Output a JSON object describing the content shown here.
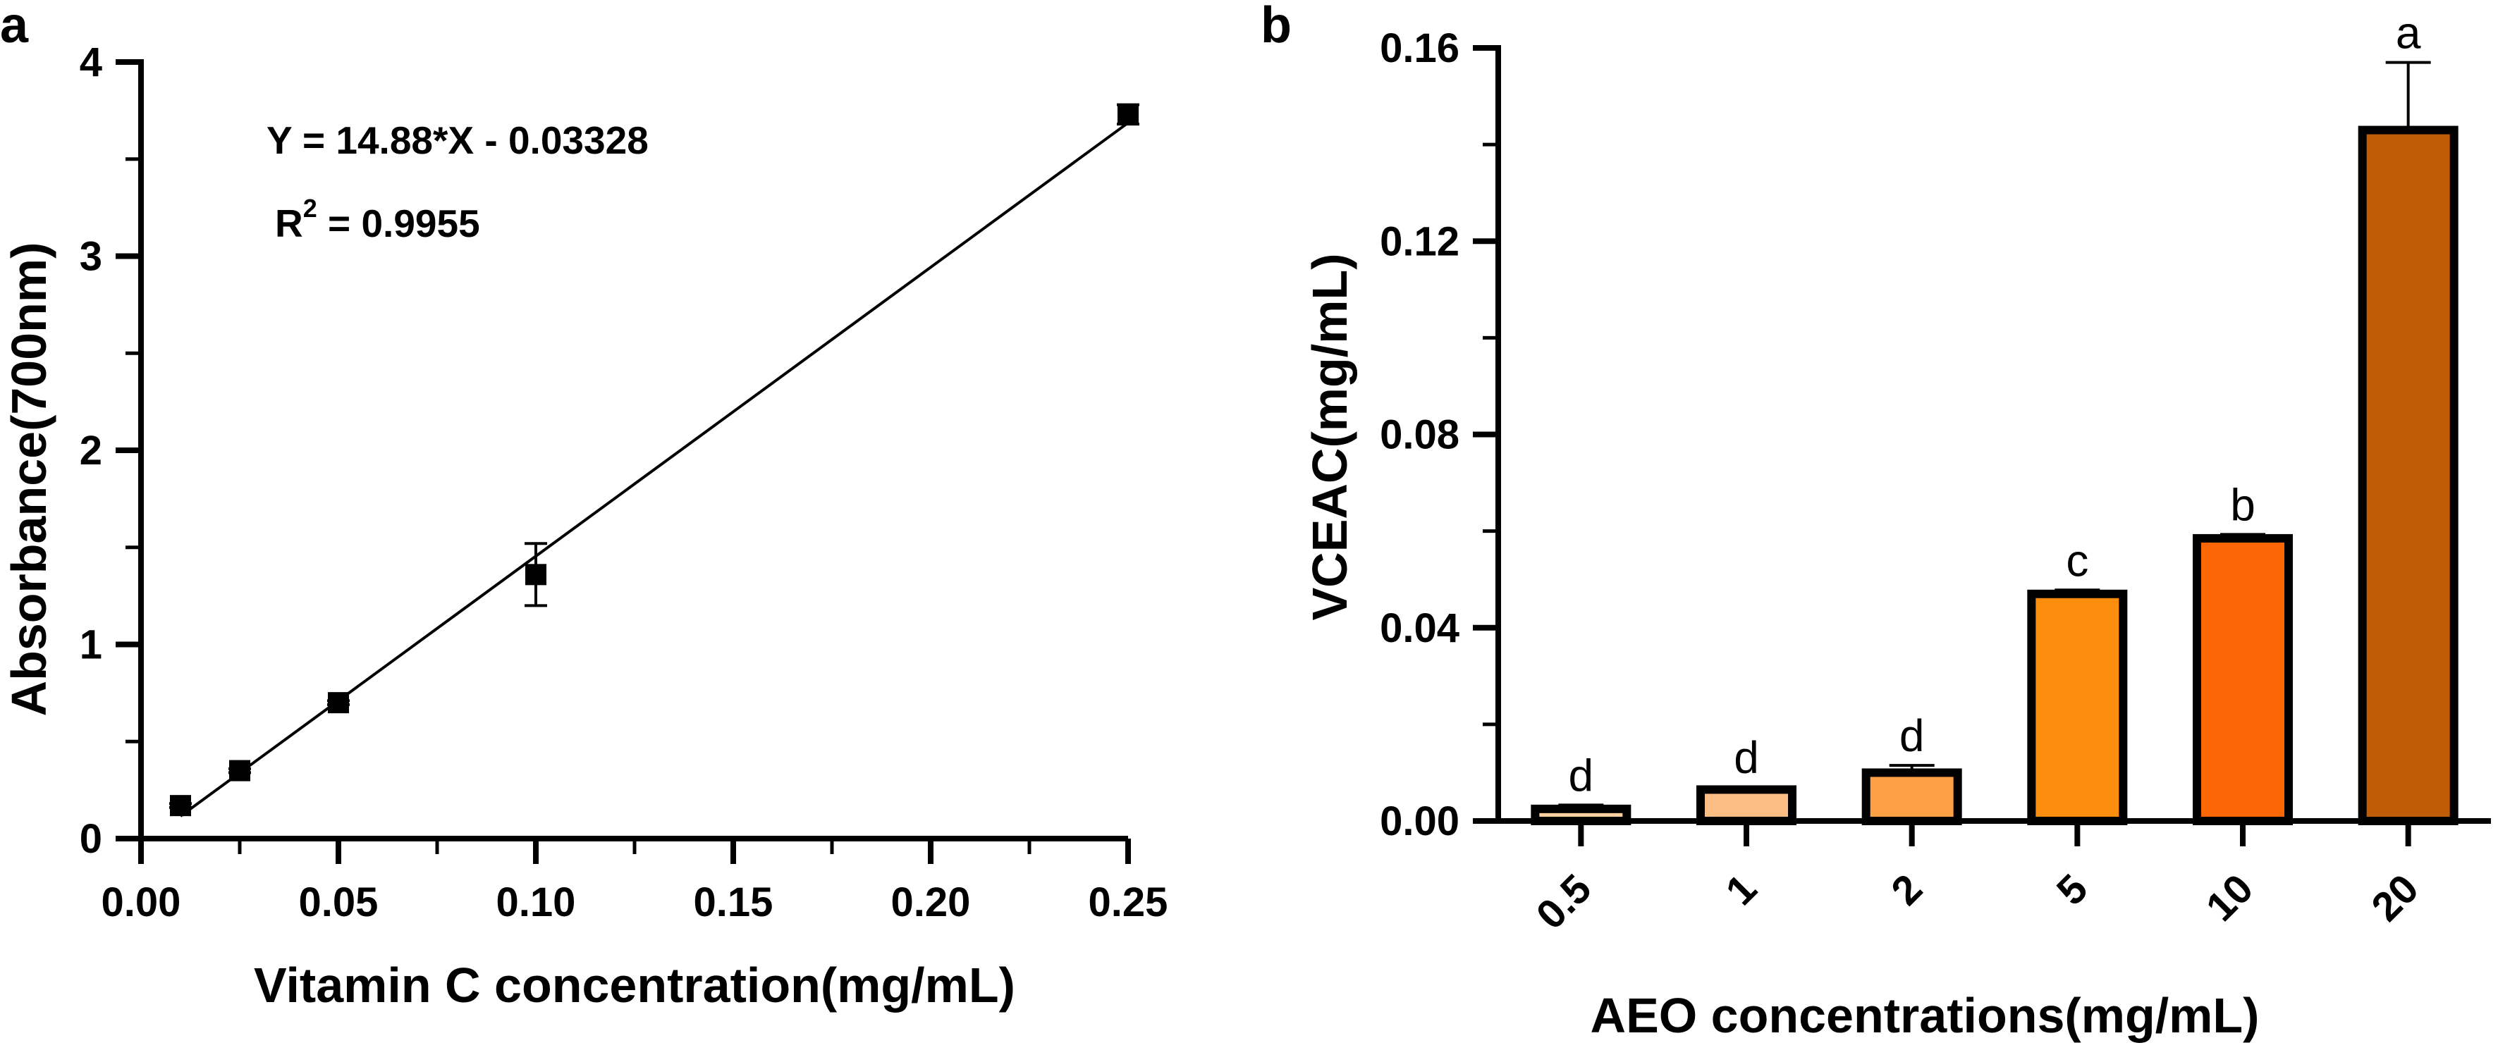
{
  "chart_data": [
    {
      "panel": "a",
      "type": "scatter",
      "xlabel": "Vitamin C concentration(mg/mL)",
      "ylabel": "Absorbance(700nm)",
      "xlim": [
        0,
        0.25
      ],
      "ylim": [
        0,
        4
      ],
      "x_ticks": [
        "0.00",
        "0.05",
        "0.10",
        "0.15",
        "0.20",
        "0.25"
      ],
      "y_ticks": [
        "0",
        "1",
        "2",
        "3",
        "4"
      ],
      "points": [
        {
          "x": 0.01,
          "y": 0.17,
          "err": 0.01
        },
        {
          "x": 0.025,
          "y": 0.35,
          "err": 0.01
        },
        {
          "x": 0.05,
          "y": 0.7,
          "err": 0.01
        },
        {
          "x": 0.1,
          "y": 1.36,
          "err": 0.16
        },
        {
          "x": 0.25,
          "y": 3.73,
          "err": 0.05
        }
      ],
      "fit": {
        "slope": 14.88,
        "intercept": -0.03328,
        "x_from": 0.01,
        "x_to": 0.25
      },
      "equation": "Y = 14.88*X - 0.03328",
      "r2_prefix": "R",
      "r2_sup": "2",
      "r2_value": " = 0.9955",
      "marker_color": "#000000"
    },
    {
      "panel": "b",
      "type": "bar",
      "xlabel": "AEO concentrations(mg/mL)",
      "ylabel": "VCEAC(mg/mL)",
      "ylim": [
        0,
        0.16
      ],
      "y_ticks": [
        "0.00",
        "0.04",
        "0.08",
        "0.12",
        "0.16"
      ],
      "categories": [
        "0.5",
        "1",
        "2",
        "5",
        "10",
        "20"
      ],
      "values": [
        0.0025,
        0.0065,
        0.01,
        0.047,
        0.0585,
        0.143
      ],
      "errors": [
        0.0008,
        0.0005,
        0.0015,
        0.0008,
        0.0008,
        0.014
      ],
      "significance": [
        "d",
        "d",
        "d",
        "c",
        "b",
        "a"
      ],
      "colors": [
        "#fdd0a2",
        "#fdbe85",
        "#fd9f45",
        "#fd8d0c",
        "#fd6604",
        "#c05b06"
      ]
    }
  ]
}
